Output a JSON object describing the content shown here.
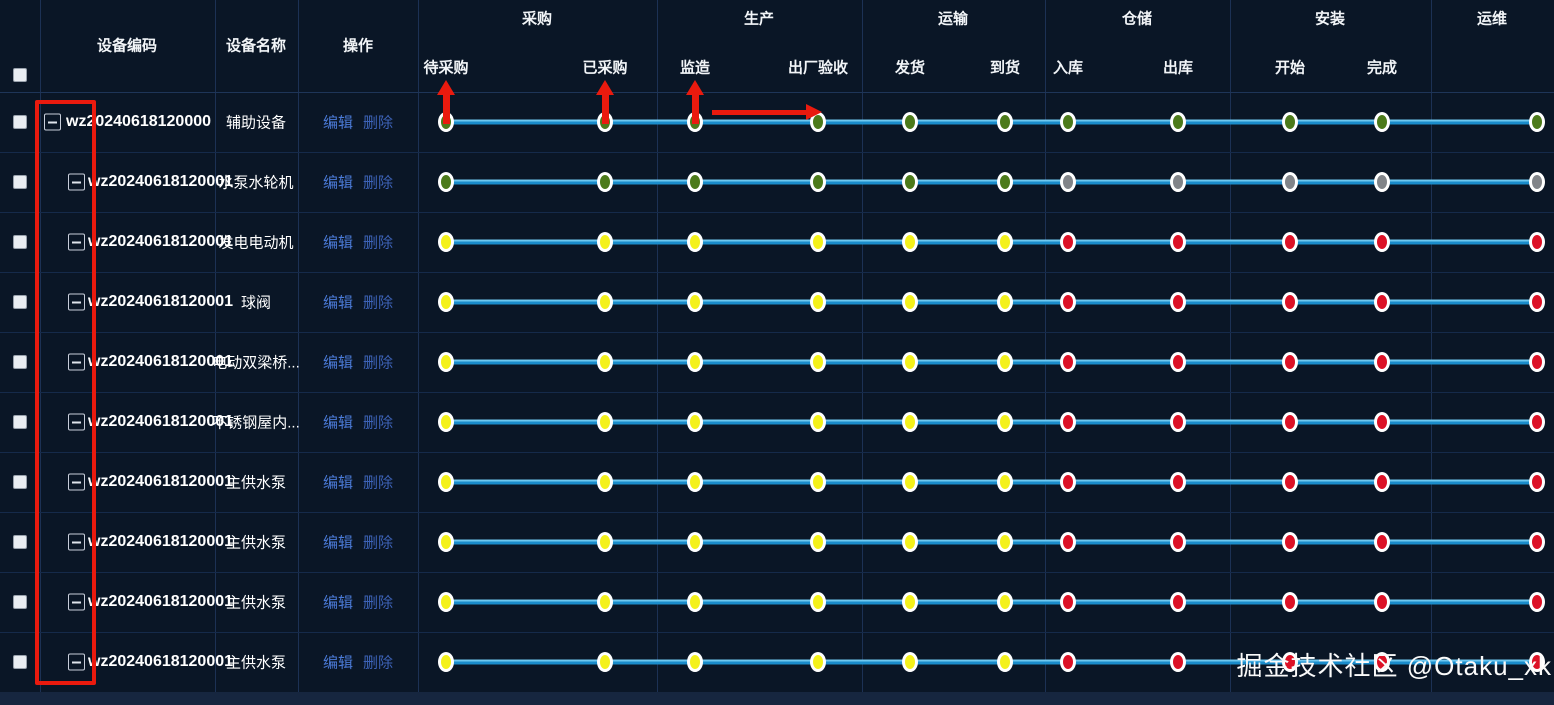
{
  "page": {
    "watermark": "掘金技术社区 @Otaku_xk"
  },
  "colors": {
    "green": "#4c7a1a",
    "yellow": "#f4f11b",
    "red": "#dc1126",
    "gray": "#818489",
    "line_blue": "#1a8ccb",
    "line_highlight": "#6ec7ef",
    "annotation_red": "#ea1a0e",
    "link_edit_blue": "#4b7ad6",
    "link_delete_blue": "#3d63b8"
  },
  "table": {
    "columns": {
      "code": "设备编码",
      "name": "设备名称",
      "ops": "操作"
    },
    "stage_groups": [
      {
        "label": "采购",
        "subs": [
          "待采购",
          "已采购"
        ]
      },
      {
        "label": "生产",
        "subs": [
          "监造",
          "出厂验收"
        ]
      },
      {
        "label": "运输",
        "subs": [
          "发货",
          "到货"
        ]
      },
      {
        "label": "仓储",
        "subs": [
          "入库",
          "出库"
        ]
      },
      {
        "label": "安装",
        "subs": [
          "开始",
          "完成"
        ]
      },
      {
        "label": "运维",
        "subs": []
      }
    ],
    "actions": {
      "edit": "编辑",
      "delete": "删除"
    },
    "rows": [
      {
        "code": "wz20240618120000",
        "name": "辅助设备",
        "level": 0,
        "dots": [
          "green",
          "green",
          "green",
          "green",
          "green",
          "green",
          "green",
          "green",
          "green",
          "green",
          "green"
        ]
      },
      {
        "code": "wz20240618120001",
        "name": "水泵水轮机",
        "level": 1,
        "dots": [
          "green",
          "green",
          "green",
          "green",
          "green",
          "green",
          "gray",
          "gray",
          "gray",
          "gray",
          "gray"
        ]
      },
      {
        "code": "wz20240618120001",
        "name": "发电电动机",
        "level": 1,
        "dots": [
          "yellow",
          "yellow",
          "yellow",
          "yellow",
          "yellow",
          "yellow",
          "red",
          "red",
          "red",
          "red",
          "red"
        ]
      },
      {
        "code": "wz20240618120001",
        "name": "球阀",
        "level": 1,
        "dots": [
          "yellow",
          "yellow",
          "yellow",
          "yellow",
          "yellow",
          "yellow",
          "red",
          "red",
          "red",
          "red",
          "red"
        ]
      },
      {
        "code": "wz20240618120001",
        "name": "电动双梁桥...",
        "level": 1,
        "dots": [
          "yellow",
          "yellow",
          "yellow",
          "yellow",
          "yellow",
          "yellow",
          "red",
          "red",
          "red",
          "red",
          "red"
        ]
      },
      {
        "code": "wz20240618120001",
        "name": "不锈钢屋内...",
        "level": 1,
        "dots": [
          "yellow",
          "yellow",
          "yellow",
          "yellow",
          "yellow",
          "yellow",
          "red",
          "red",
          "red",
          "red",
          "red"
        ]
      },
      {
        "code": "wz20240618120001",
        "name": "主供水泵",
        "level": 1,
        "dots": [
          "yellow",
          "yellow",
          "yellow",
          "yellow",
          "yellow",
          "yellow",
          "red",
          "red",
          "red",
          "red",
          "red"
        ]
      },
      {
        "code": "wz20240618120001",
        "name": "主供水泵",
        "level": 1,
        "dots": [
          "yellow",
          "yellow",
          "yellow",
          "yellow",
          "yellow",
          "yellow",
          "red",
          "red",
          "red",
          "red",
          "red"
        ]
      },
      {
        "code": "wz20240618120001",
        "name": "主供水泵",
        "level": 1,
        "dots": [
          "yellow",
          "yellow",
          "yellow",
          "yellow",
          "yellow",
          "yellow",
          "red",
          "red",
          "red",
          "red",
          "red"
        ]
      },
      {
        "code": "wz20240618120001",
        "name": "主供水泵",
        "level": 1,
        "dots": [
          "yellow",
          "yellow",
          "yellow",
          "yellow",
          "yellow",
          "yellow",
          "red",
          "red",
          "red",
          "red",
          "red"
        ]
      }
    ]
  },
  "annotations": {
    "highlighted_area": "expander-column",
    "arrow_targets": [
      "待采购",
      "已采购",
      "监造",
      "监造到出厂验收"
    ]
  }
}
